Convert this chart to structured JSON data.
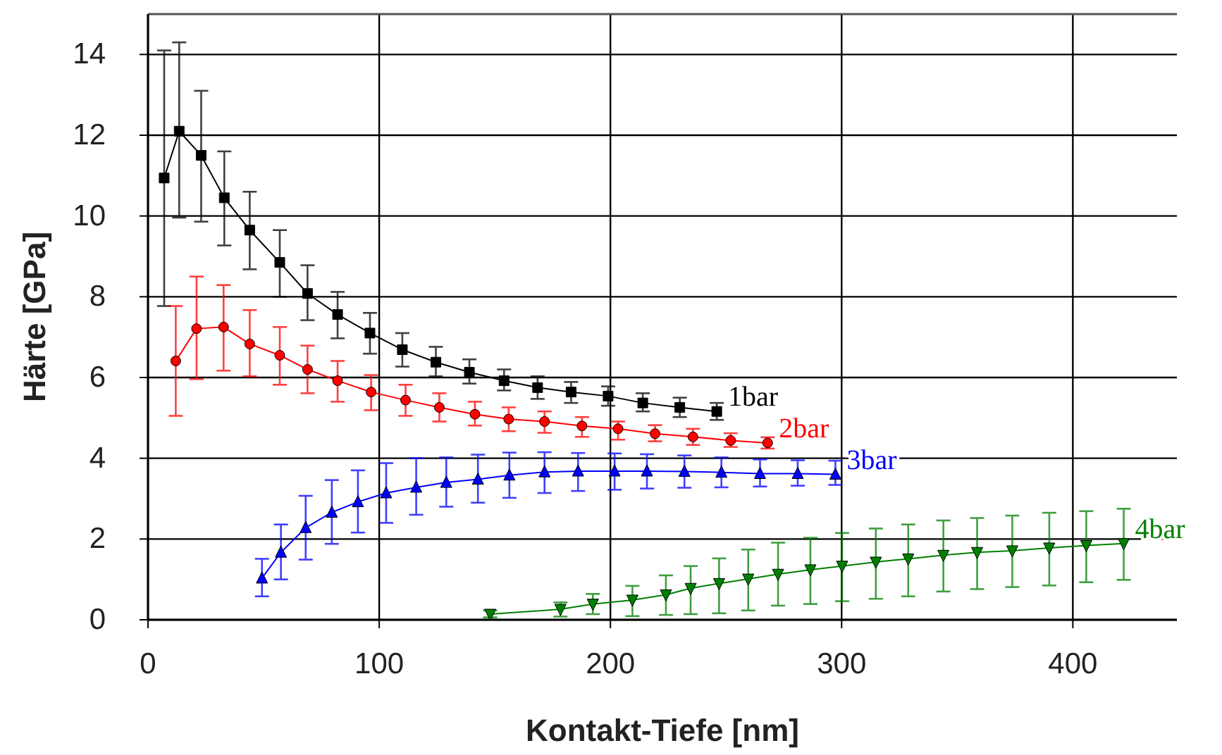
{
  "chart_data": {
    "type": "line",
    "xlabel": "Kontakt-Tiefe [nm]",
    "ylabel": "Härte [GPa]",
    "xlim": [
      0,
      445
    ],
    "ylim": [
      0,
      15
    ],
    "xticks": [
      0,
      100,
      200,
      300,
      400
    ],
    "yticks": [
      0,
      2,
      4,
      6,
      8,
      10,
      12,
      14
    ],
    "grid": true,
    "series": [
      {
        "name": "1bar",
        "color": "#000000",
        "marker": "square",
        "x": [
          7,
          13.5,
          23,
          33,
          44,
          57,
          69,
          82,
          96,
          110,
          124.5,
          139,
          154,
          168.5,
          183,
          199,
          214,
          230,
          246
        ],
        "values": [
          10.94,
          12.1,
          11.5,
          10.45,
          9.65,
          8.85,
          8.08,
          7.56,
          7.1,
          6.69,
          6.38,
          6.13,
          5.92,
          5.75,
          5.64,
          5.54,
          5.37,
          5.26,
          5.16
        ],
        "errors": [
          [
            7.77,
            14.1
          ],
          [
            9.96,
            14.3
          ],
          [
            9.86,
            13.1
          ],
          [
            9.27,
            11.6
          ],
          [
            8.68,
            10.6
          ],
          [
            8.0,
            9.65
          ],
          [
            7.42,
            8.78
          ],
          [
            6.97,
            8.12
          ],
          [
            6.59,
            7.6
          ],
          [
            6.27,
            7.1
          ],
          [
            6.03,
            6.76
          ],
          [
            5.85,
            6.45
          ],
          [
            5.68,
            6.2
          ],
          [
            5.47,
            6.03
          ],
          [
            5.37,
            5.89
          ],
          [
            5.3,
            5.78
          ],
          [
            5.16,
            5.61
          ],
          [
            5.02,
            5.5
          ],
          [
            4.95,
            5.37
          ]
        ]
      },
      {
        "name": "2bar",
        "color": "#ff0000",
        "marker": "circle",
        "x": [
          12,
          21,
          32.7,
          44,
          57,
          69,
          82,
          96.5,
          111.4,
          126,
          141.4,
          156,
          171.5,
          187.7,
          203.3,
          219.3,
          235.7,
          252,
          268
        ],
        "values": [
          6.41,
          7.21,
          7.25,
          6.83,
          6.55,
          6.2,
          5.92,
          5.64,
          5.44,
          5.26,
          5.09,
          4.97,
          4.91,
          4.8,
          4.73,
          4.61,
          4.53,
          4.44,
          4.38
        ],
        "errors": [
          [
            5.05,
            7.77
          ],
          [
            5.96,
            8.5
          ],
          [
            6.17,
            8.29
          ],
          [
            6.03,
            7.67
          ],
          [
            5.82,
            7.25
          ],
          [
            5.61,
            6.79
          ],
          [
            5.4,
            6.41
          ],
          [
            5.19,
            6.06
          ],
          [
            5.05,
            5.82
          ],
          [
            4.91,
            5.61
          ],
          [
            4.81,
            5.4
          ],
          [
            4.67,
            5.26
          ],
          [
            4.63,
            5.16
          ],
          [
            4.53,
            5.02
          ],
          [
            4.46,
            4.91
          ],
          [
            4.42,
            4.82
          ],
          [
            4.33,
            4.73
          ],
          [
            4.28,
            4.62
          ],
          [
            4.24,
            4.52
          ]
        ]
      },
      {
        "name": "3bar",
        "color": "#0000ff",
        "marker": "triangle",
        "x": [
          49.3,
          57.5,
          68.2,
          79.5,
          90.8,
          103,
          116,
          129,
          142.7,
          156.3,
          171.5,
          186,
          201.8,
          215.8,
          232,
          248,
          264.7,
          281,
          297.3
        ],
        "values": [
          1.03,
          1.67,
          2.28,
          2.66,
          2.92,
          3.14,
          3.28,
          3.4,
          3.48,
          3.58,
          3.66,
          3.68,
          3.68,
          3.68,
          3.67,
          3.65,
          3.62,
          3.62,
          3.6
        ],
        "errors": [
          [
            0.58,
            1.51
          ],
          [
            1.0,
            2.36
          ],
          [
            1.49,
            3.07
          ],
          [
            1.88,
            3.46
          ],
          [
            2.16,
            3.7
          ],
          [
            2.4,
            3.88
          ],
          [
            2.6,
            4.0
          ],
          [
            2.8,
            4.02
          ],
          [
            2.9,
            4.09
          ],
          [
            3.02,
            4.14
          ],
          [
            3.14,
            4.15
          ],
          [
            3.19,
            4.13
          ],
          [
            3.22,
            4.12
          ],
          [
            3.25,
            4.1
          ],
          [
            3.27,
            4.07
          ],
          [
            3.28,
            4.02
          ],
          [
            3.3,
            3.97
          ],
          [
            3.32,
            3.95
          ],
          [
            3.34,
            3.94
          ]
        ]
      },
      {
        "name": "4bar",
        "color": "#008000",
        "marker": "triangle-down",
        "x": [
          148,
          178.4,
          192.4,
          209.5,
          224,
          234.7,
          247,
          259.6,
          272.5,
          286.5,
          300.2,
          314.8,
          328.8,
          344,
          358.6,
          373.8,
          389.8,
          405.8,
          422
        ],
        "values": [
          0.14,
          0.26,
          0.39,
          0.49,
          0.62,
          0.78,
          0.9,
          1.01,
          1.13,
          1.24,
          1.33,
          1.43,
          1.51,
          1.6,
          1.67,
          1.71,
          1.78,
          1.84,
          1.89
        ],
        "errors": [
          [
            0.06,
            0.23
          ],
          [
            0.08,
            0.43
          ],
          [
            0.14,
            0.64
          ],
          [
            0.09,
            0.84
          ],
          [
            0.12,
            1.1
          ],
          [
            0.14,
            1.33
          ],
          [
            0.16,
            1.52
          ],
          [
            0.23,
            1.74
          ],
          [
            0.35,
            1.91
          ],
          [
            0.39,
            2.03
          ],
          [
            0.46,
            2.15
          ],
          [
            0.52,
            2.26
          ],
          [
            0.58,
            2.36
          ],
          [
            0.7,
            2.46
          ],
          [
            0.76,
            2.52
          ],
          [
            0.81,
            2.58
          ],
          [
            0.85,
            2.65
          ],
          [
            0.93,
            2.69
          ],
          [
            0.99,
            2.75
          ]
        ]
      }
    ]
  }
}
